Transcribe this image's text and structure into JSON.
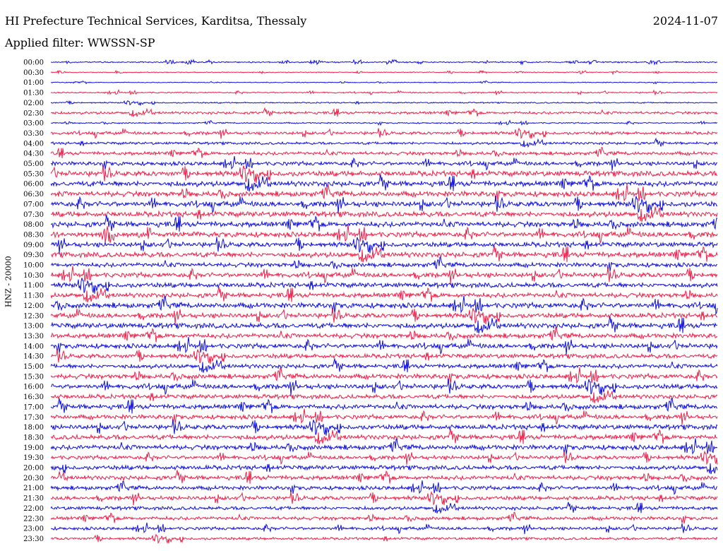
{
  "header": {
    "title": "HI Prefecture Technical Services, Karditsa, Thessaly",
    "date": "2024-11-07",
    "filter_label": "Applied filter: WWSSN-SP"
  },
  "colors": {
    "blue": "#1010e0",
    "red": "#f0204a"
  },
  "chart_data": {
    "type": "line",
    "chart_kind": "helicorder (seismogram drum plot)",
    "title": "HI Prefecture Technical Services, Karditsa, Thessaly",
    "ylabel": "HNZ - 20000",
    "xlabel": "",
    "rows": [
      "00:00",
      "00:30",
      "01:00",
      "01:30",
      "02:00",
      "02:30",
      "03:00",
      "03:30",
      "04:00",
      "04:30",
      "05:00",
      "05:30",
      "06:00",
      "06:30",
      "07:00",
      "07:30",
      "08:00",
      "08:30",
      "09:00",
      "09:30",
      "10:00",
      "10:30",
      "11:00",
      "11:30",
      "12:00",
      "12:30",
      "13:00",
      "13:30",
      "14:00",
      "14:30",
      "15:00",
      "15:30",
      "16:00",
      "16:30",
      "17:00",
      "17:30",
      "18:00",
      "18:30",
      "19:00",
      "19:30",
      "20:00",
      "20:30",
      "21:00",
      "21:30",
      "22:00",
      "22:30",
      "23:00",
      "23:30"
    ],
    "row_colors": "alternating blue/red",
    "relative_amplitude": [
      0.15,
      0.1,
      0.1,
      0.15,
      0.15,
      0.3,
      0.15,
      0.35,
      0.3,
      0.4,
      0.45,
      0.6,
      0.6,
      0.6,
      0.6,
      0.6,
      0.6,
      0.6,
      0.55,
      0.6,
      0.5,
      0.55,
      0.55,
      0.55,
      0.6,
      0.55,
      0.6,
      0.55,
      0.55,
      0.5,
      0.5,
      0.55,
      0.55,
      0.5,
      0.55,
      0.5,
      0.55,
      0.55,
      0.55,
      0.45,
      0.5,
      0.5,
      0.45,
      0.45,
      0.4,
      0.4,
      0.35,
      0.3
    ],
    "grid": false
  }
}
